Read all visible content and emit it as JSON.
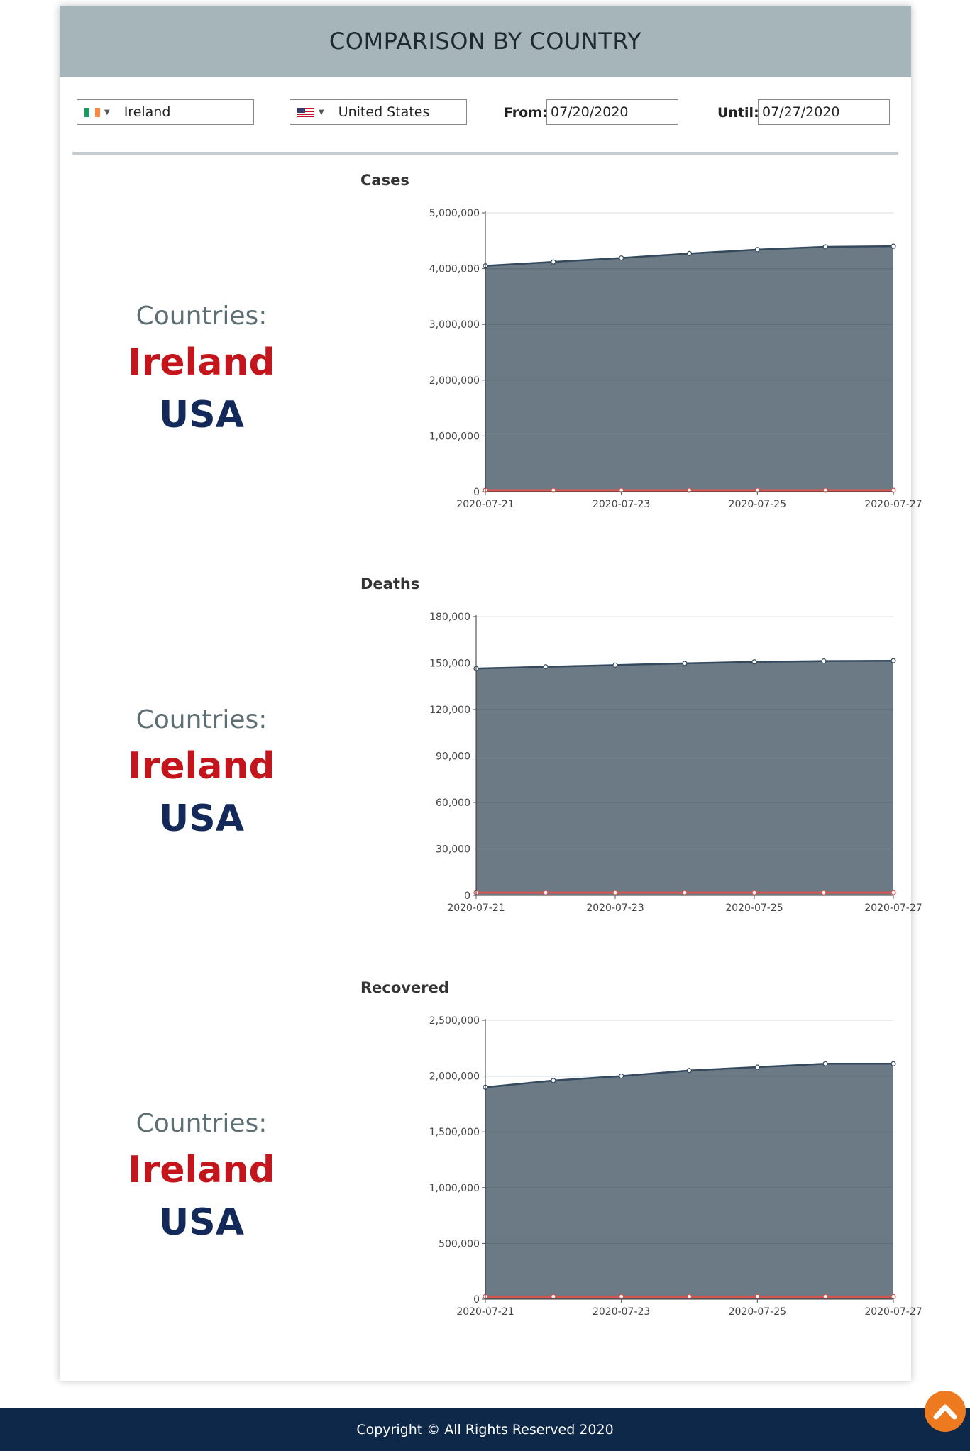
{
  "header": {
    "title": "COMPARISON BY COUNTRY"
  },
  "controls": {
    "country1": {
      "name": "Ireland",
      "flag_icon": "ireland-flag-icon"
    },
    "country2": {
      "name": "United States",
      "flag_icon": "us-flag-icon"
    },
    "from_label": "From:",
    "from_value": "07/20/2020",
    "until_label": "Until:",
    "until_value": "07/27/2020"
  },
  "countries_block": {
    "label": "Countries:",
    "country1": "Ireland",
    "country2": "USA"
  },
  "colors": {
    "usa_area": "#6b7a85",
    "usa_line": "#34495e",
    "ireland_line": "#d9534f",
    "ireland_text": "#c4151c",
    "usa_text": "#13295a"
  },
  "chart_data": [
    {
      "type": "area",
      "title": "Cases",
      "x": [
        "2020-07-21",
        "2020-07-22",
        "2020-07-23",
        "2020-07-24",
        "2020-07-25",
        "2020-07-26",
        "2020-07-27"
      ],
      "x_tick_labels": [
        "2020-07-21",
        "2020-07-23",
        "2020-07-25",
        "2020-07-27"
      ],
      "y_ticks": [
        "0",
        "1,000,000",
        "2,000,000",
        "3,000,000",
        "4,000,000",
        "5,000,000"
      ],
      "ylim": [
        0,
        5000000
      ],
      "series": [
        {
          "name": "USA",
          "values": [
            4050000,
            4120000,
            4190000,
            4270000,
            4340000,
            4390000,
            4400000
          ]
        },
        {
          "name": "Ireland",
          "values": [
            25800,
            25800,
            25900,
            25900,
            25900,
            25900,
            25900
          ]
        }
      ],
      "grid": true
    },
    {
      "type": "area",
      "title": "Deaths",
      "x": [
        "2020-07-21",
        "2020-07-22",
        "2020-07-23",
        "2020-07-24",
        "2020-07-25",
        "2020-07-26",
        "2020-07-27"
      ],
      "x_tick_labels": [
        "2020-07-21",
        "2020-07-23",
        "2020-07-25",
        "2020-07-27"
      ],
      "y_ticks": [
        "0",
        "30,000",
        "60,000",
        "90,000",
        "120,000",
        "150,000",
        "180,000"
      ],
      "ylim": [
        0,
        180000
      ],
      "series": [
        {
          "name": "USA",
          "values": [
            146500,
            147600,
            148700,
            149800,
            150800,
            151300,
            151500
          ]
        },
        {
          "name": "Ireland",
          "values": [
            1763,
            1763,
            1763,
            1763,
            1763,
            1763,
            1763
          ]
        }
      ],
      "grid": true
    },
    {
      "type": "area",
      "title": "Recovered",
      "x": [
        "2020-07-21",
        "2020-07-22",
        "2020-07-23",
        "2020-07-24",
        "2020-07-25",
        "2020-07-26",
        "2020-07-27"
      ],
      "x_tick_labels": [
        "2020-07-21",
        "2020-07-23",
        "2020-07-25",
        "2020-07-27"
      ],
      "y_ticks": [
        "0",
        "500,000",
        "1,000,000",
        "1,500,000",
        "2,000,000",
        "2,500,000"
      ],
      "ylim": [
        0,
        2500000
      ],
      "series": [
        {
          "name": "USA",
          "values": [
            1900000,
            1960000,
            2000000,
            2050000,
            2080000,
            2110000,
            2110000
          ]
        },
        {
          "name": "Ireland",
          "values": [
            23364,
            23364,
            23364,
            23364,
            23364,
            23364,
            23364
          ]
        }
      ],
      "grid": true
    }
  ],
  "footer": {
    "text": "Copyright © All Rights Reserved 2020",
    "back_to_top_icon": "chevron-up-icon"
  }
}
